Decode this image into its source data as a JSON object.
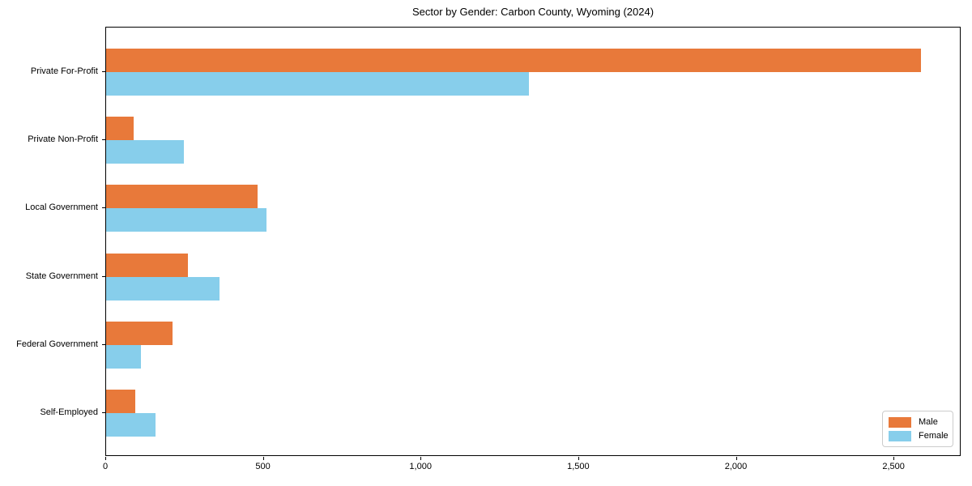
{
  "title": "Sector by Gender: Carbon County, Wyoming (2024)",
  "chart_data": {
    "type": "bar",
    "orientation": "horizontal",
    "title": "Sector by Gender: Carbon County, Wyoming (2024)",
    "xlabel": "",
    "ylabel": "",
    "categories": [
      "Private For-Profit",
      "Private Non-Profit",
      "Local Government",
      "State Government",
      "Federal Government",
      "Self-Employed"
    ],
    "series": [
      {
        "name": "Male",
        "color": "#E8793A",
        "values": [
          2584,
          87,
          481,
          260,
          211,
          93
        ]
      },
      {
        "name": "Female",
        "color": "#87CEEB",
        "values": [
          1340,
          247,
          509,
          360,
          111,
          157
        ]
      }
    ],
    "xlim": [
      0,
      2713
    ],
    "xticks": [
      0,
      500,
      1000,
      1500,
      2000,
      2500
    ],
    "xticklabels": [
      "0",
      "500",
      "1,000",
      "1,500",
      "2,000",
      "2,500"
    ],
    "grid": false,
    "legend_position": "lower right"
  },
  "legend": {
    "items": [
      {
        "label": "Male",
        "color": "#E8793A"
      },
      {
        "label": "Female",
        "color": "#87CEEB"
      }
    ]
  }
}
